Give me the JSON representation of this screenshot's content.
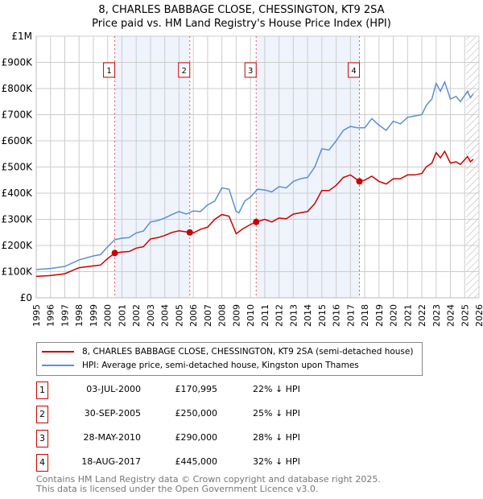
{
  "title": "8, CHARLES BABBAGE CLOSE, CHESSINGTON, KT9 2SA",
  "subtitle": "Price paid vs. HM Land Registry's House Price Index (HPI)",
  "chart_data": {
    "type": "line",
    "title": "8, CHARLES BABBAGE CLOSE, CHESSINGTON, KT9 2SA",
    "subtitle": "Price paid vs. HM Land Registry's House Price Index (HPI)",
    "xlim": [
      1995,
      2026
    ],
    "ylim": [
      0,
      1000000
    ],
    "x_ticks": [
      "1995",
      "1996",
      "1997",
      "1998",
      "1999",
      "2000",
      "2001",
      "2002",
      "2003",
      "2004",
      "2005",
      "2006",
      "2007",
      "2008",
      "2009",
      "2010",
      "2011",
      "2012",
      "2013",
      "2014",
      "2015",
      "2016",
      "2017",
      "2018",
      "2019",
      "2020",
      "2021",
      "2022",
      "2023",
      "2024",
      "2025",
      "2026"
    ],
    "y_ticks": [
      {
        "v": 0,
        "label": "£0"
      },
      {
        "v": 100000,
        "label": "£100K"
      },
      {
        "v": 200000,
        "label": "£200K"
      },
      {
        "v": 300000,
        "label": "£300K"
      },
      {
        "v": 400000,
        "label": "£400K"
      },
      {
        "v": 500000,
        "label": "£500K"
      },
      {
        "v": 600000,
        "label": "£600K"
      },
      {
        "v": 700000,
        "label": "£700K"
      },
      {
        "v": 800000,
        "label": "£800K"
      },
      {
        "v": 900000,
        "label": "£900K"
      },
      {
        "v": 1000000,
        "label": "£1M"
      }
    ],
    "grid": true,
    "forecast_hatch_from": 2025.1,
    "shaded_ranges": [
      [
        2000.5,
        2005.75
      ],
      [
        2010.4,
        2017.63
      ]
    ],
    "series": [
      {
        "name": "8, CHARLES BABBAGE CLOSE, CHESSINGTON, KT9 2SA (semi-detached house)",
        "color": "#cc0000",
        "x": [
          1995,
          1996,
          1997,
          1998,
          1999,
          1999.5,
          2000,
          2000.5,
          2001,
          2001.5,
          2002,
          2002.5,
          2003,
          2003.5,
          2004,
          2004.5,
          2005,
          2005.75,
          2006,
          2006.5,
          2007,
          2007.5,
          2008,
          2008.5,
          2009,
          2009.5,
          2010,
          2010.4,
          2011,
          2011.5,
          2012,
          2012.5,
          2013,
          2013.5,
          2014,
          2014.5,
          2015,
          2015.5,
          2016,
          2016.5,
          2017,
          2017.63,
          2018,
          2018.5,
          2019,
          2019.5,
          2020,
          2020.5,
          2021,
          2021.5,
          2022,
          2022.3,
          2022.7,
          2023,
          2023.3,
          2023.6,
          2024,
          2024.4,
          2024.7,
          2025.2,
          2025.4,
          2025.6
        ],
        "y": [
          82000,
          85000,
          92000,
          115000,
          122000,
          125000,
          150000,
          171000,
          175000,
          177000,
          190000,
          195000,
          225000,
          230000,
          238000,
          250000,
          256000,
          250000,
          248000,
          262000,
          270000,
          300000,
          318000,
          312000,
          245000,
          265000,
          280000,
          290000,
          300000,
          290000,
          305000,
          302000,
          320000,
          325000,
          330000,
          360000,
          410000,
          410000,
          430000,
          460000,
          470000,
          445000,
          450000,
          465000,
          445000,
          435000,
          455000,
          455000,
          470000,
          470000,
          475000,
          500000,
          515000,
          555000,
          535000,
          560000,
          515000,
          520000,
          510000,
          540000,
          520000,
          530000
        ]
      },
      {
        "name": "HPI: Average price, semi-detached house, Kingston upon Thames",
        "color": "#5b8fd6",
        "x": [
          1995,
          1996,
          1997,
          1998,
          1999,
          1999.5,
          2000,
          2000.5,
          2001,
          2001.5,
          2002,
          2002.5,
          2003,
          2003.5,
          2004,
          2004.5,
          2005,
          2005.5,
          2006,
          2006.5,
          2007,
          2007.5,
          2008,
          2008.5,
          2009,
          2009.2,
          2009.6,
          2010,
          2010.5,
          2011,
          2011.5,
          2012,
          2012.5,
          2013,
          2013.5,
          2014,
          2014.5,
          2015,
          2015.5,
          2016,
          2016.5,
          2017,
          2017.5,
          2018,
          2018.5,
          2019,
          2019.5,
          2020,
          2020.5,
          2021,
          2021.5,
          2022,
          2022.3,
          2022.7,
          2023,
          2023.3,
          2023.6,
          2024,
          2024.4,
          2024.7,
          2025.2,
          2025.4,
          2025.6
        ],
        "y": [
          108000,
          112000,
          120000,
          145000,
          160000,
          165000,
          195000,
          222000,
          228000,
          230000,
          248000,
          255000,
          290000,
          295000,
          305000,
          318000,
          330000,
          320000,
          332000,
          330000,
          355000,
          370000,
          420000,
          415000,
          330000,
          325000,
          370000,
          385000,
          415000,
          412000,
          405000,
          425000,
          420000,
          445000,
          455000,
          460000,
          500000,
          570000,
          565000,
          600000,
          640000,
          655000,
          650000,
          650000,
          685000,
          660000,
          640000,
          675000,
          665000,
          690000,
          695000,
          700000,
          735000,
          760000,
          820000,
          790000,
          825000,
          760000,
          770000,
          750000,
          790000,
          765000,
          780000
        ]
      }
    ],
    "sales": [
      {
        "num": "1",
        "date": "03-JUL-2000",
        "price": "£170,995",
        "hpi": "22% ↓ HPI",
        "x": 2000.5,
        "y": 170995
      },
      {
        "num": "2",
        "date": "30-SEP-2005",
        "price": "£250,000",
        "hpi": "25% ↓ HPI",
        "x": 2005.75,
        "y": 250000
      },
      {
        "num": "3",
        "date": "28-MAY-2010",
        "price": "£290,000",
        "hpi": "28% ↓ HPI",
        "x": 2010.4,
        "y": 290000
      },
      {
        "num": "4",
        "date": "18-AUG-2017",
        "price": "£445,000",
        "hpi": "32% ↓ HPI",
        "x": 2017.63,
        "y": 445000
      }
    ]
  },
  "legend": {
    "property": "8, CHARLES BABBAGE CLOSE, CHESSINGTON, KT9 2SA (semi-detached house)",
    "hpi": "HPI: Average price, semi-detached house, Kingston upon Thames"
  },
  "footer": {
    "line1": "Contains HM Land Registry data © Crown copyright and database right 2025.",
    "line2": "This data is licensed under the Open Government Licence v3.0."
  }
}
